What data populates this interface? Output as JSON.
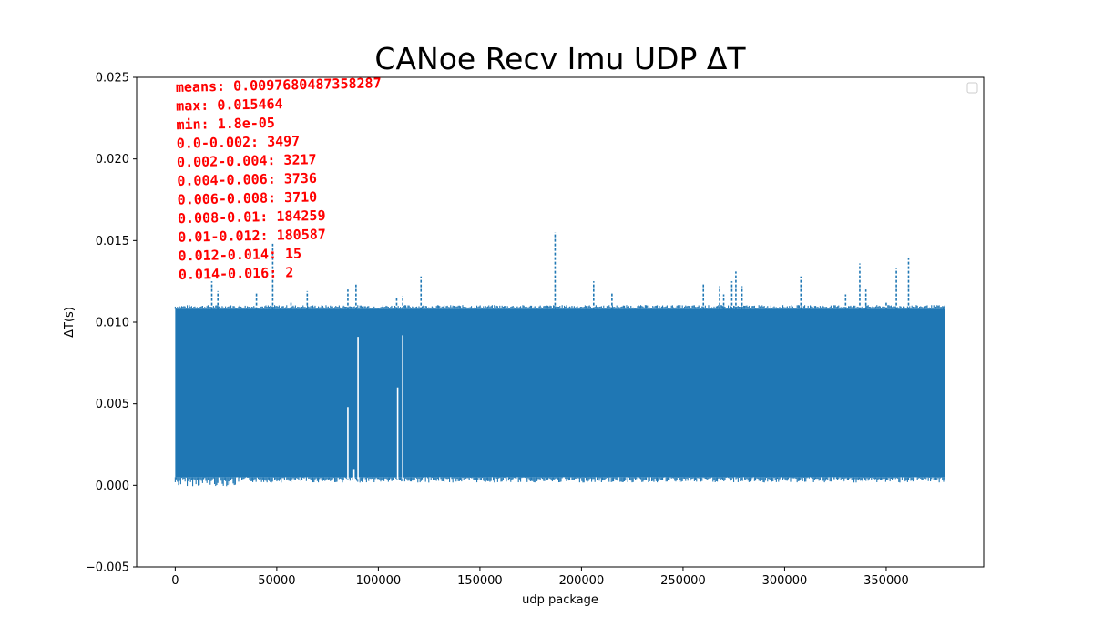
{
  "chart_data": {
    "type": "line",
    "title": "CANoe Recv Imu UDP ΔT",
    "xlabel": "udp package",
    "ylabel": "ΔT(s)",
    "xlim": [
      -19000,
      398000
    ],
    "ylim": [
      -0.005,
      0.025
    ],
    "x_ticks": [
      0,
      50000,
      100000,
      150000,
      200000,
      250000,
      300000,
      350000
    ],
    "y_ticks": [
      -0.005,
      0.0,
      0.005,
      0.01,
      0.015,
      0.02,
      0.025
    ],
    "x_tick_labels": [
      "0",
      "50000",
      "100000",
      "150000",
      "200000",
      "250000",
      "300000",
      "350000"
    ],
    "y_tick_labels": [
      "−0.005",
      "0.000",
      "0.005",
      "0.010",
      "0.015",
      "0.020",
      "0.025"
    ],
    "legend": "top-right",
    "grid": false,
    "series": [
      {
        "color": "#1f77b4",
        "line_style": "dashed",
        "x_range": [
          0,
          379000
        ],
        "band_upper": 0.0108,
        "band_lower": 0.0005,
        "spikes": [
          {
            "x": 18000,
            "y": 0.0125
          },
          {
            "x": 21000,
            "y": 0.0119
          },
          {
            "x": 40000,
            "y": 0.0118
          },
          {
            "x": 48000,
            "y": 0.0148
          },
          {
            "x": 57000,
            "y": 0.0113
          },
          {
            "x": 65000,
            "y": 0.0119
          },
          {
            "x": 85000,
            "y": 0.012
          },
          {
            "x": 89000,
            "y": 0.0123
          },
          {
            "x": 109000,
            "y": 0.0115
          },
          {
            "x": 112000,
            "y": 0.0116
          },
          {
            "x": 121000,
            "y": 0.0128
          },
          {
            "x": 187000,
            "y": 0.0155
          },
          {
            "x": 206000,
            "y": 0.0125
          },
          {
            "x": 215000,
            "y": 0.0118
          },
          {
            "x": 260000,
            "y": 0.0124
          },
          {
            "x": 268000,
            "y": 0.0122
          },
          {
            "x": 270000,
            "y": 0.0117
          },
          {
            "x": 274000,
            "y": 0.0125
          },
          {
            "x": 276000,
            "y": 0.0131
          },
          {
            "x": 279000,
            "y": 0.0122
          },
          {
            "x": 308000,
            "y": 0.0128
          },
          {
            "x": 330000,
            "y": 0.0117
          },
          {
            "x": 337000,
            "y": 0.0136
          },
          {
            "x": 340000,
            "y": 0.012
          },
          {
            "x": 350000,
            "y": 0.0113
          },
          {
            "x": 355000,
            "y": 0.0133
          },
          {
            "x": 361000,
            "y": 0.0139
          },
          {
            "x": 378000,
            "y": 0.011
          }
        ],
        "dips": [
          {
            "x": 85000,
            "y": 0.0048
          },
          {
            "x": 88000,
            "y": 0.001
          },
          {
            "x": 90000,
            "y": 0.0091
          },
          {
            "x": 109500,
            "y": 0.006
          },
          {
            "x": 112000,
            "y": 0.0092
          }
        ]
      }
    ],
    "annotations": {
      "color": "#ff0000",
      "lines": [
        "means: 0.0097680487358287",
        "max: 0.015464",
        "min: 1.8e-05",
        "0.0-0.002: 3497",
        "0.002-0.004: 3217",
        "0.004-0.006: 3736",
        "0.006-0.008: 3710",
        "0.008-0.01: 184259",
        "0.01-0.012: 180587",
        "0.012-0.014: 15",
        "0.014-0.016: 2"
      ]
    }
  }
}
